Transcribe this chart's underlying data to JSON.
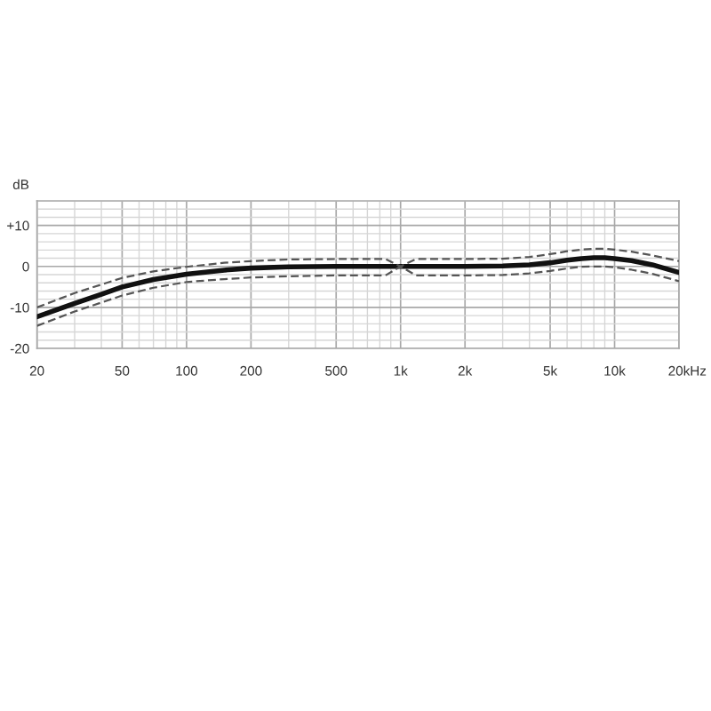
{
  "chart_data": {
    "type": "line",
    "ylabel": "dB",
    "xlabel": "Hz",
    "log": "x",
    "grid": true,
    "xlim": [
      20,
      20000
    ],
    "ylim": [
      -20,
      16
    ],
    "xticks": [
      20,
      50,
      100,
      200,
      500,
      {
        "value": 1000,
        "label": "1k"
      },
      {
        "value": 2000,
        "label": "2k"
      },
      {
        "value": 5000,
        "label": "5k"
      },
      {
        "value": 10000,
        "label": "10k"
      },
      {
        "value": 20000,
        "label": "20k"
      }
    ],
    "yticks": [
      -20,
      -10,
      0,
      {
        "value": 10,
        "label": "+10"
      }
    ],
    "series": [
      {
        "color": "#111111",
        "line_style": "solid",
        "x": [
          20,
          25,
          30,
          40,
          50,
          70,
          100,
          150,
          200,
          300,
          500,
          1000,
          2000,
          3000,
          4000,
          5000,
          6000,
          7000,
          8000,
          9000,
          10000,
          12000,
          15000,
          20000
        ],
        "values": [
          -12.3,
          -10.5,
          -9,
          -6.8,
          -5,
          -3.2,
          -1.9,
          -0.9,
          -0.4,
          -0.1,
          0,
          0,
          0,
          0.1,
          0.4,
          0.9,
          1.5,
          1.9,
          2.1,
          2.1,
          1.9,
          1.4,
          0.4,
          -1.5
        ]
      },
      {
        "color": "#555555",
        "line_style": "dashed",
        "x": [
          20,
          30,
          50,
          70,
          100,
          150,
          200,
          300,
          500,
          850,
          1000,
          1180,
          2000,
          3000,
          4000,
          5000,
          6000,
          7000,
          8000,
          9000,
          10000,
          12000,
          15000,
          20000
        ],
        "values": [
          -10,
          -6.5,
          -2.8,
          -1.2,
          -0.1,
          0.9,
          1.3,
          1.7,
          1.8,
          1.8,
          0,
          1.8,
          1.8,
          1.9,
          2.3,
          3,
          3.7,
          4.1,
          4.3,
          4.3,
          4.1,
          3.6,
          2.7,
          1.3
        ]
      },
      {
        "color": "#555555",
        "line_style": "dashed",
        "x": [
          20,
          30,
          50,
          70,
          100,
          150,
          200,
          300,
          500,
          850,
          1000,
          1180,
          2000,
          3000,
          4000,
          5000,
          6000,
          7000,
          8000,
          9000,
          10000,
          12000,
          15000,
          20000
        ],
        "values": [
          -14.5,
          -11,
          -7.1,
          -5.2,
          -3.8,
          -3.1,
          -2.7,
          -2.4,
          -2.2,
          -2.2,
          0,
          -2.2,
          -2.2,
          -2.1,
          -1.7,
          -1.1,
          -0.5,
          -0.1,
          0,
          0,
          -0.2,
          -0.8,
          -1.8,
          -3.6
        ]
      }
    ]
  }
}
